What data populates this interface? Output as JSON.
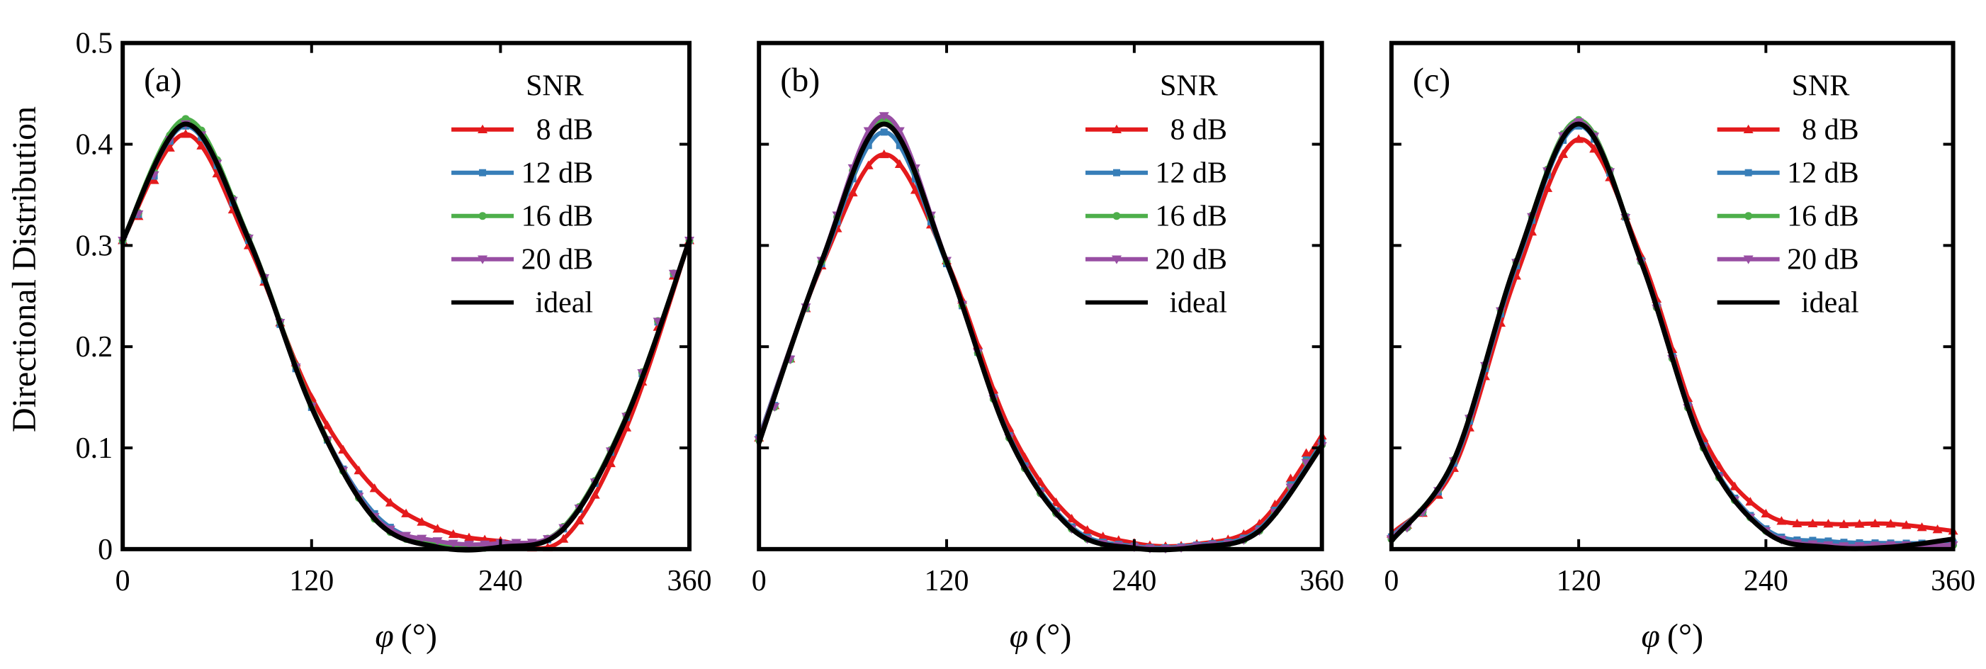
{
  "chart_data": {
    "type": "line",
    "ylabel": "Directional Distribution",
    "xlabel_symbol": "φ",
    "xlabel_unit": "(°)",
    "ylim": [
      0,
      0.5
    ],
    "xlim": [
      0,
      360
    ],
    "yticks": [
      "0",
      "0.1",
      "0.2",
      "0.3",
      "0.4",
      "0.5"
    ],
    "xticks": [
      "0",
      "120",
      "240",
      "360"
    ],
    "legend_title": "SNR",
    "series_styles": [
      {
        "name": " 8 dB",
        "color": "#e41a1c",
        "marker": "triangle-up"
      },
      {
        "name": "12 dB",
        "color": "#377eb8",
        "marker": "square"
      },
      {
        "name": "16 dB",
        "color": "#4daf4a",
        "marker": "circle"
      },
      {
        "name": "20 dB",
        "color": "#984ea3",
        "marker": "triangle-down"
      },
      {
        "name": "ideal",
        "color": "#000000",
        "marker": "none"
      }
    ],
    "panels": [
      {
        "label": "(a)",
        "x": [
          0,
          40,
          80,
          120,
          160,
          200,
          240,
          280,
          320,
          360
        ],
        "series": [
          {
            "name": " 8 dB",
            "values": [
              0.305,
              0.41,
              0.3,
              0.15,
              0.06,
              0.02,
              0.008,
              0.01,
              0.12,
              0.305
            ]
          },
          {
            "name": "12 dB",
            "values": [
              0.305,
              0.418,
              0.305,
              0.14,
              0.035,
              0.005,
              0.005,
              0.02,
              0.13,
              0.305
            ]
          },
          {
            "name": "16 dB",
            "values": [
              0.305,
              0.425,
              0.308,
              0.142,
              0.03,
              0.004,
              0.003,
              0.022,
              0.132,
              0.305
            ]
          },
          {
            "name": "20 dB",
            "values": [
              0.305,
              0.42,
              0.307,
              0.141,
              0.032,
              0.008,
              0.006,
              0.021,
              0.131,
              0.305
            ]
          },
          {
            "name": "ideal",
            "values": [
              0.305,
              0.42,
              0.306,
              0.14,
              0.03,
              0.002,
              0.002,
              0.02,
              0.13,
              0.305
            ]
          }
        ]
      },
      {
        "label": "(b)",
        "x": [
          0,
          40,
          80,
          120,
          160,
          200,
          240,
          280,
          320,
          360
        ],
        "series": [
          {
            "name": " 8 dB",
            "values": [
              0.11,
              0.28,
              0.39,
              0.285,
              0.12,
              0.03,
              0.006,
              0.005,
              0.025,
              0.112
            ]
          },
          {
            "name": "12 dB",
            "values": [
              0.11,
              0.282,
              0.412,
              0.282,
              0.112,
              0.022,
              0.003,
              0.004,
              0.02,
              0.105
            ]
          },
          {
            "name": "16 dB",
            "values": [
              0.108,
              0.284,
              0.424,
              0.284,
              0.11,
              0.02,
              0.002,
              0.003,
              0.018,
              0.103
            ]
          },
          {
            "name": "20 dB",
            "values": [
              0.108,
              0.285,
              0.428,
              0.285,
              0.11,
              0.02,
              0.002,
              0.003,
              0.018,
              0.102
            ]
          },
          {
            "name": "ideal",
            "values": [
              0.105,
              0.284,
              0.42,
              0.284,
              0.11,
              0.02,
              0.001,
              0.002,
              0.018,
              0.102
            ]
          }
        ]
      },
      {
        "label": "(c)",
        "x": [
          0,
          40,
          80,
          120,
          160,
          200,
          240,
          280,
          320,
          360
        ],
        "series": [
          {
            "name": " 8 dB",
            "values": [
              0.015,
              0.08,
              0.27,
              0.405,
              0.29,
              0.11,
              0.035,
              0.025,
              0.025,
              0.018
            ]
          },
          {
            "name": "12 dB",
            "values": [
              0.012,
              0.085,
              0.28,
              0.418,
              0.285,
              0.102,
              0.02,
              0.008,
              0.006,
              0.006
            ]
          },
          {
            "name": "16 dB",
            "values": [
              0.01,
              0.088,
              0.284,
              0.424,
              0.284,
              0.1,
              0.018,
              0.004,
              0.004,
              0.004
            ]
          },
          {
            "name": "20 dB",
            "values": [
              0.01,
              0.087,
              0.283,
              0.422,
              0.283,
              0.1,
              0.018,
              0.004,
              0.004,
              0.004
            ]
          },
          {
            "name": "ideal",
            "values": [
              0.008,
              0.088,
              0.284,
              0.42,
              0.284,
              0.1,
              0.017,
              0.002,
              0.002,
              0.01
            ]
          }
        ]
      }
    ]
  }
}
